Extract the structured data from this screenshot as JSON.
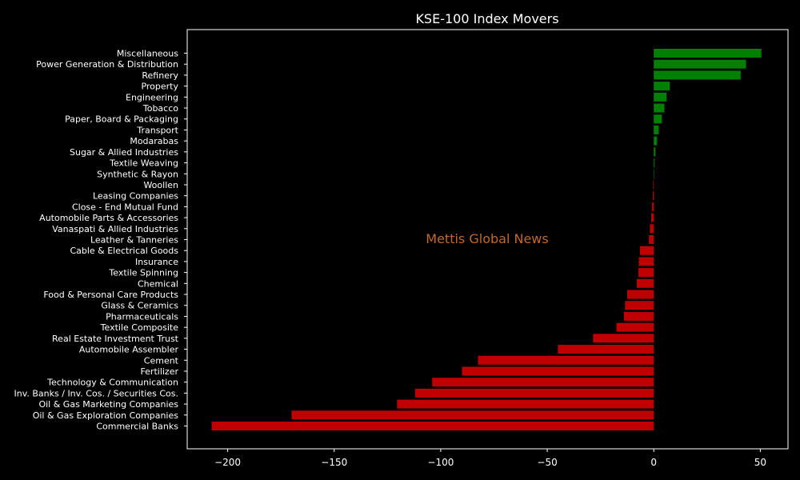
{
  "chart_data": {
    "type": "bar",
    "orientation": "horizontal",
    "title": "KSE-100 Index Movers",
    "xlabel": "",
    "ylabel": "",
    "xlim": [
      -219,
      63
    ],
    "xticks": [
      -200,
      -150,
      -100,
      -50,
      0,
      50
    ],
    "xtick_labels": [
      "−200",
      "−150",
      "−100",
      "−50",
      "0",
      "50"
    ],
    "grid": false,
    "colors": {
      "positive": "#008000",
      "negative": "#c00000",
      "background": "#000000",
      "text": "#ffffff"
    },
    "categories": [
      "Miscellaneous",
      "Power Generation & Distribution",
      "Refinery",
      "Property",
      "Engineering",
      "Tobacco",
      "Paper, Board & Packaging",
      "Transport",
      "Modarabas",
      "Sugar & Allied Industries",
      "Textile Weaving",
      "Synthetic & Rayon",
      "Woollen",
      "Leasing Companies",
      "Close - End Mutual Fund",
      "Automobile Parts & Accessories",
      "Vanaspati & Allied Industries",
      "Leather & Tanneries",
      "Cable & Electrical Goods",
      "Insurance",
      "Textile Spinning",
      "Chemical",
      "Food & Personal Care Products",
      "Glass & Ceramics",
      "Pharmaceuticals",
      "Textile Composite",
      "Real Estate Investment Trust",
      "Automobile Assembler",
      "Cement",
      "Fertilizer",
      "Technology & Communication",
      "Inv. Banks / Inv. Cos. / Securities Cos.",
      "Oil & Gas Marketing Companies",
      "Oil & Gas Exploration Companies",
      "Commercial Banks"
    ],
    "values": [
      50.5,
      43.3,
      40.8,
      7.5,
      6.0,
      5.0,
      3.8,
      2.3,
      1.5,
      0.8,
      0.4,
      0.1,
      -0.3,
      -0.5,
      -0.8,
      -1.2,
      -1.8,
      -2.3,
      -6.5,
      -7.0,
      -7.2,
      -8.0,
      -12.5,
      -13.5,
      -14.0,
      -17.5,
      -28.5,
      -45.0,
      -82.5,
      -90.0,
      -104.0,
      -112.0,
      -120.5,
      -170.0,
      -207.5
    ],
    "annotations": [
      {
        "text": "Mettis Global News"
      }
    ]
  }
}
